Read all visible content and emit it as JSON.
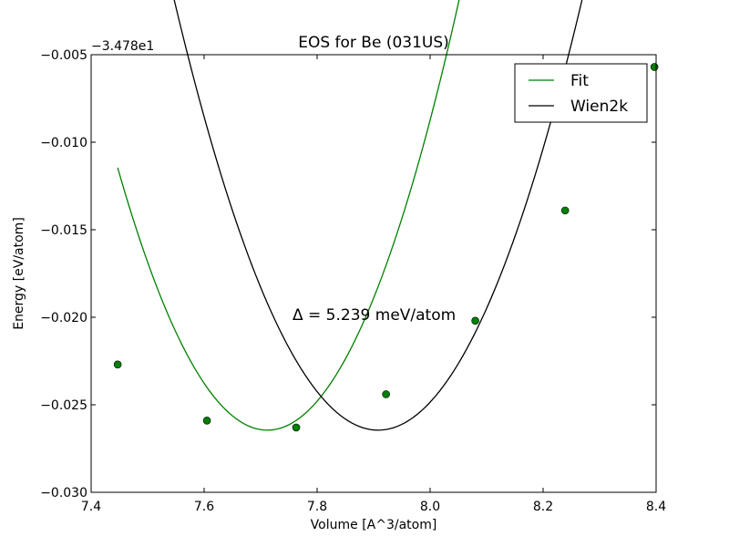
{
  "chart_data": {
    "type": "line",
    "title": "EOS for Be (031US)",
    "xlabel": "Volume [A^3/atom]",
    "ylabel": "Energy [eV/atom]",
    "y_offset_label": "−3.478e1",
    "xlim": [
      7.4,
      8.4
    ],
    "ylim": [
      -0.03,
      -0.005
    ],
    "x_ticks": [
      7.4,
      7.6,
      7.8,
      8.0,
      8.2,
      8.4
    ],
    "x_tick_labels": [
      "7.4",
      "7.6",
      "7.8",
      "8.0",
      "8.2",
      "8.4"
    ],
    "y_ticks": [
      -0.03,
      -0.025,
      -0.02,
      -0.015,
      -0.01,
      -0.005
    ],
    "y_tick_labels": [
      "−0.030",
      "−0.025",
      "−0.020",
      "−0.015",
      "−0.010",
      "−0.005"
    ],
    "grid": false,
    "legend_position": "top-right",
    "annotation": "Δ = 5.239 meV/atom",
    "series": [
      {
        "name": "Fit",
        "color": "#008000",
        "kind": "line+points",
        "points": [
          {
            "x": 7.447,
            "y": -0.0227
          },
          {
            "x": 7.605,
            "y": -0.0259
          },
          {
            "x": 7.763,
            "y": -0.0263
          },
          {
            "x": 7.922,
            "y": -0.0244
          },
          {
            "x": 8.08,
            "y": -0.0202
          },
          {
            "x": 8.239,
            "y": -0.0139
          },
          {
            "x": 8.397,
            "y": -0.0057
          }
        ],
        "curve": {
          "e0": -0.02645,
          "v0": 7.712,
          "a": 0.2135
        }
      },
      {
        "name": "Wien2k",
        "color": "#000000",
        "kind": "line",
        "curve": {
          "e0": -0.02645,
          "v0": 7.908,
          "a": 0.1887
        }
      }
    ]
  }
}
